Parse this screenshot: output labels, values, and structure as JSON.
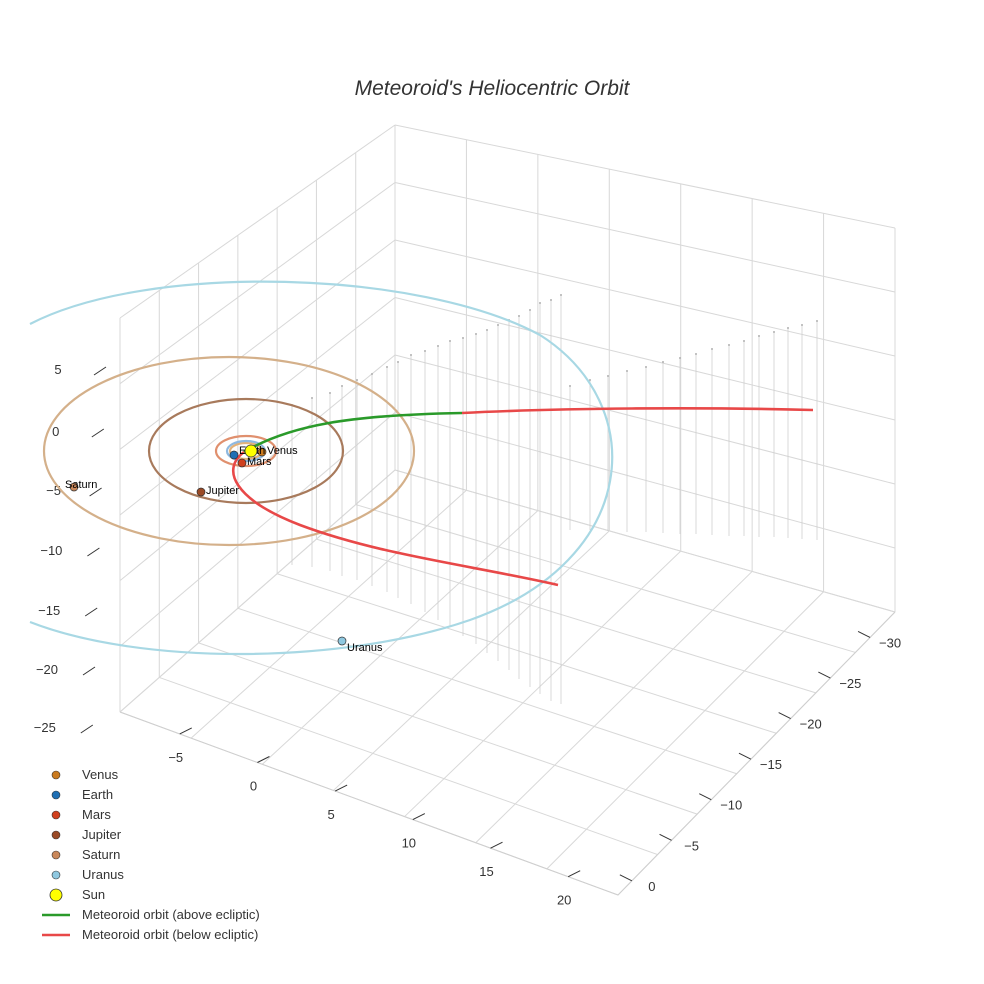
{
  "chart_data": {
    "type": "scatter3d",
    "title": "Meteoroid's Heliocentric Orbit",
    "axes": {
      "x": {
        "ticks": [
          -5,
          0,
          5,
          10,
          15,
          20
        ],
        "range": [
          -8,
          24
        ]
      },
      "y": {
        "ticks": [
          -30,
          -25,
          -20,
          -15,
          -10,
          -5,
          0
        ],
        "range": [
          -32,
          3
        ]
      },
      "z": {
        "ticks": [
          5,
          0,
          -5,
          -10,
          -15,
          -20,
          -25
        ],
        "range": [
          -25,
          7
        ]
      }
    },
    "planets": [
      {
        "name": "Venus",
        "label": "Venus",
        "color": "#c97a1f",
        "size": 7,
        "label_side": "right"
      },
      {
        "name": "Earth",
        "label": "Earth",
        "color": "#1f6fb4",
        "size": 7,
        "label_side": "right"
      },
      {
        "name": "Mars",
        "label": "Mars",
        "color": "#d0401e",
        "size": 7,
        "label_side": "right"
      },
      {
        "name": "Jupiter",
        "label": "Jupiter",
        "color": "#9a4a26",
        "size": 7,
        "label_side": "right"
      },
      {
        "name": "Saturn",
        "label": "Saturn",
        "color": "#c9875a",
        "size": 7,
        "label_side": "right"
      },
      {
        "name": "Uranus",
        "label": "Uranus",
        "color": "#8fc8e0",
        "size": 7,
        "label_side": "right"
      }
    ],
    "sun": {
      "name": "Sun",
      "color": "#ffff00",
      "size": 12
    },
    "orbit_colors": {
      "Venus": "#e3b27a",
      "Earth": "#8fb9e0",
      "Mars": "#e0906e",
      "Jupiter": "#a87a5c",
      "Saturn": "#d4b08a",
      "Uranus": "#a8d8e4"
    },
    "meteoroid": [
      {
        "name": "Meteoroid orbit (above ecliptic)",
        "color": "#2a9a2a"
      },
      {
        "name": "Meteoroid orbit (below ecliptic)",
        "color": "#e84848"
      }
    ],
    "legend": [
      {
        "label": "Venus",
        "kind": "marker",
        "color": "#c97a1f"
      },
      {
        "label": "Earth",
        "kind": "marker",
        "color": "#1f6fb4"
      },
      {
        "label": "Mars",
        "kind": "marker",
        "color": "#d0401e"
      },
      {
        "label": "Jupiter",
        "kind": "marker",
        "color": "#9a4a26"
      },
      {
        "label": "Saturn",
        "kind": "marker",
        "color": "#c9875a"
      },
      {
        "label": "Uranus",
        "kind": "marker",
        "color": "#8fc8e0"
      },
      {
        "label": "Sun",
        "kind": "sun",
        "color": "#ffff00"
      },
      {
        "label": "Meteoroid orbit (above ecliptic)",
        "kind": "line",
        "color": "#2a9a2a"
      },
      {
        "label": "Meteoroid orbit (below ecliptic)",
        "kind": "line",
        "color": "#e84848"
      }
    ],
    "legend_position": "bottom-left",
    "grid": true
  }
}
